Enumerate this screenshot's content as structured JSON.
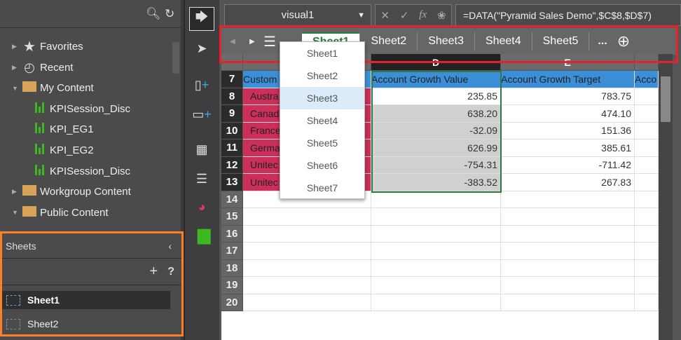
{
  "left_panel": {
    "tree": [
      {
        "label": "Favorites",
        "icon": "star-icon",
        "expand": "collapsed"
      },
      {
        "label": "Recent",
        "icon": "history-icon",
        "expand": "collapsed"
      },
      {
        "label": "My Content",
        "icon": "user-folder-icon",
        "expand": "expanded"
      },
      {
        "label": "KPISession_Disc",
        "icon": "report-icon"
      },
      {
        "label": "KPI_EG1",
        "icon": "report-icon"
      },
      {
        "label": "KPI_EG2",
        "icon": "report-icon"
      },
      {
        "label": "KPISession_Disc",
        "icon": "report-icon"
      },
      {
        "label": "Workgroup Content",
        "icon": "group-folder-icon",
        "expand": "collapsed"
      },
      {
        "label": "Public Content",
        "icon": "globe-folder-icon",
        "expand": "expanded"
      }
    ]
  },
  "sheets_panel": {
    "title": "Sheets",
    "items": [
      "Sheet1",
      "Sheet2"
    ],
    "selected": "Sheet1",
    "highlight_color": "#ff7f27"
  },
  "formula_bar": {
    "name_box": "visual1",
    "formula": "=DATA(\"Pyramid Sales Demo\",$C$8,$D$7)"
  },
  "tabs": {
    "items": [
      "Sheet1",
      "Sheet2",
      "Sheet3",
      "Sheet4",
      "Sheet5"
    ],
    "active": "Sheet1",
    "more": "...",
    "highlight_color": "#e8212a"
  },
  "dropdown": {
    "items": [
      "Sheet1",
      "Sheet2",
      "Sheet3",
      "Sheet4",
      "Sheet5",
      "Sheet6",
      "Sheet7"
    ],
    "hovered": "Sheet3"
  },
  "grid": {
    "columns": [
      "",
      "D",
      "E",
      ""
    ],
    "header_row": {
      "row": "7",
      "cells": [
        "Custom",
        "Account Growth Value",
        "Account Growth Target",
        "Acco"
      ]
    },
    "rows": [
      {
        "row": "8",
        "customer": "Austra",
        "value": "235.85",
        "target": "783.75"
      },
      {
        "row": "9",
        "customer": "Canad",
        "value": "638.20",
        "target": "474.10"
      },
      {
        "row": "10",
        "customer": "France",
        "value": "-32.09",
        "target": "151.36"
      },
      {
        "row": "11",
        "customer": "Germa",
        "value": "626.99",
        "target": "385.61"
      },
      {
        "row": "12",
        "customer": "Unitec",
        "value": "-754.31",
        "target": "-711.42"
      },
      {
        "row": "13",
        "customer": "Unitec",
        "value": "-383.52",
        "target": "267.83"
      }
    ],
    "empty_rows": [
      "14",
      "15",
      "16",
      "17",
      "18",
      "19",
      "20"
    ]
  }
}
